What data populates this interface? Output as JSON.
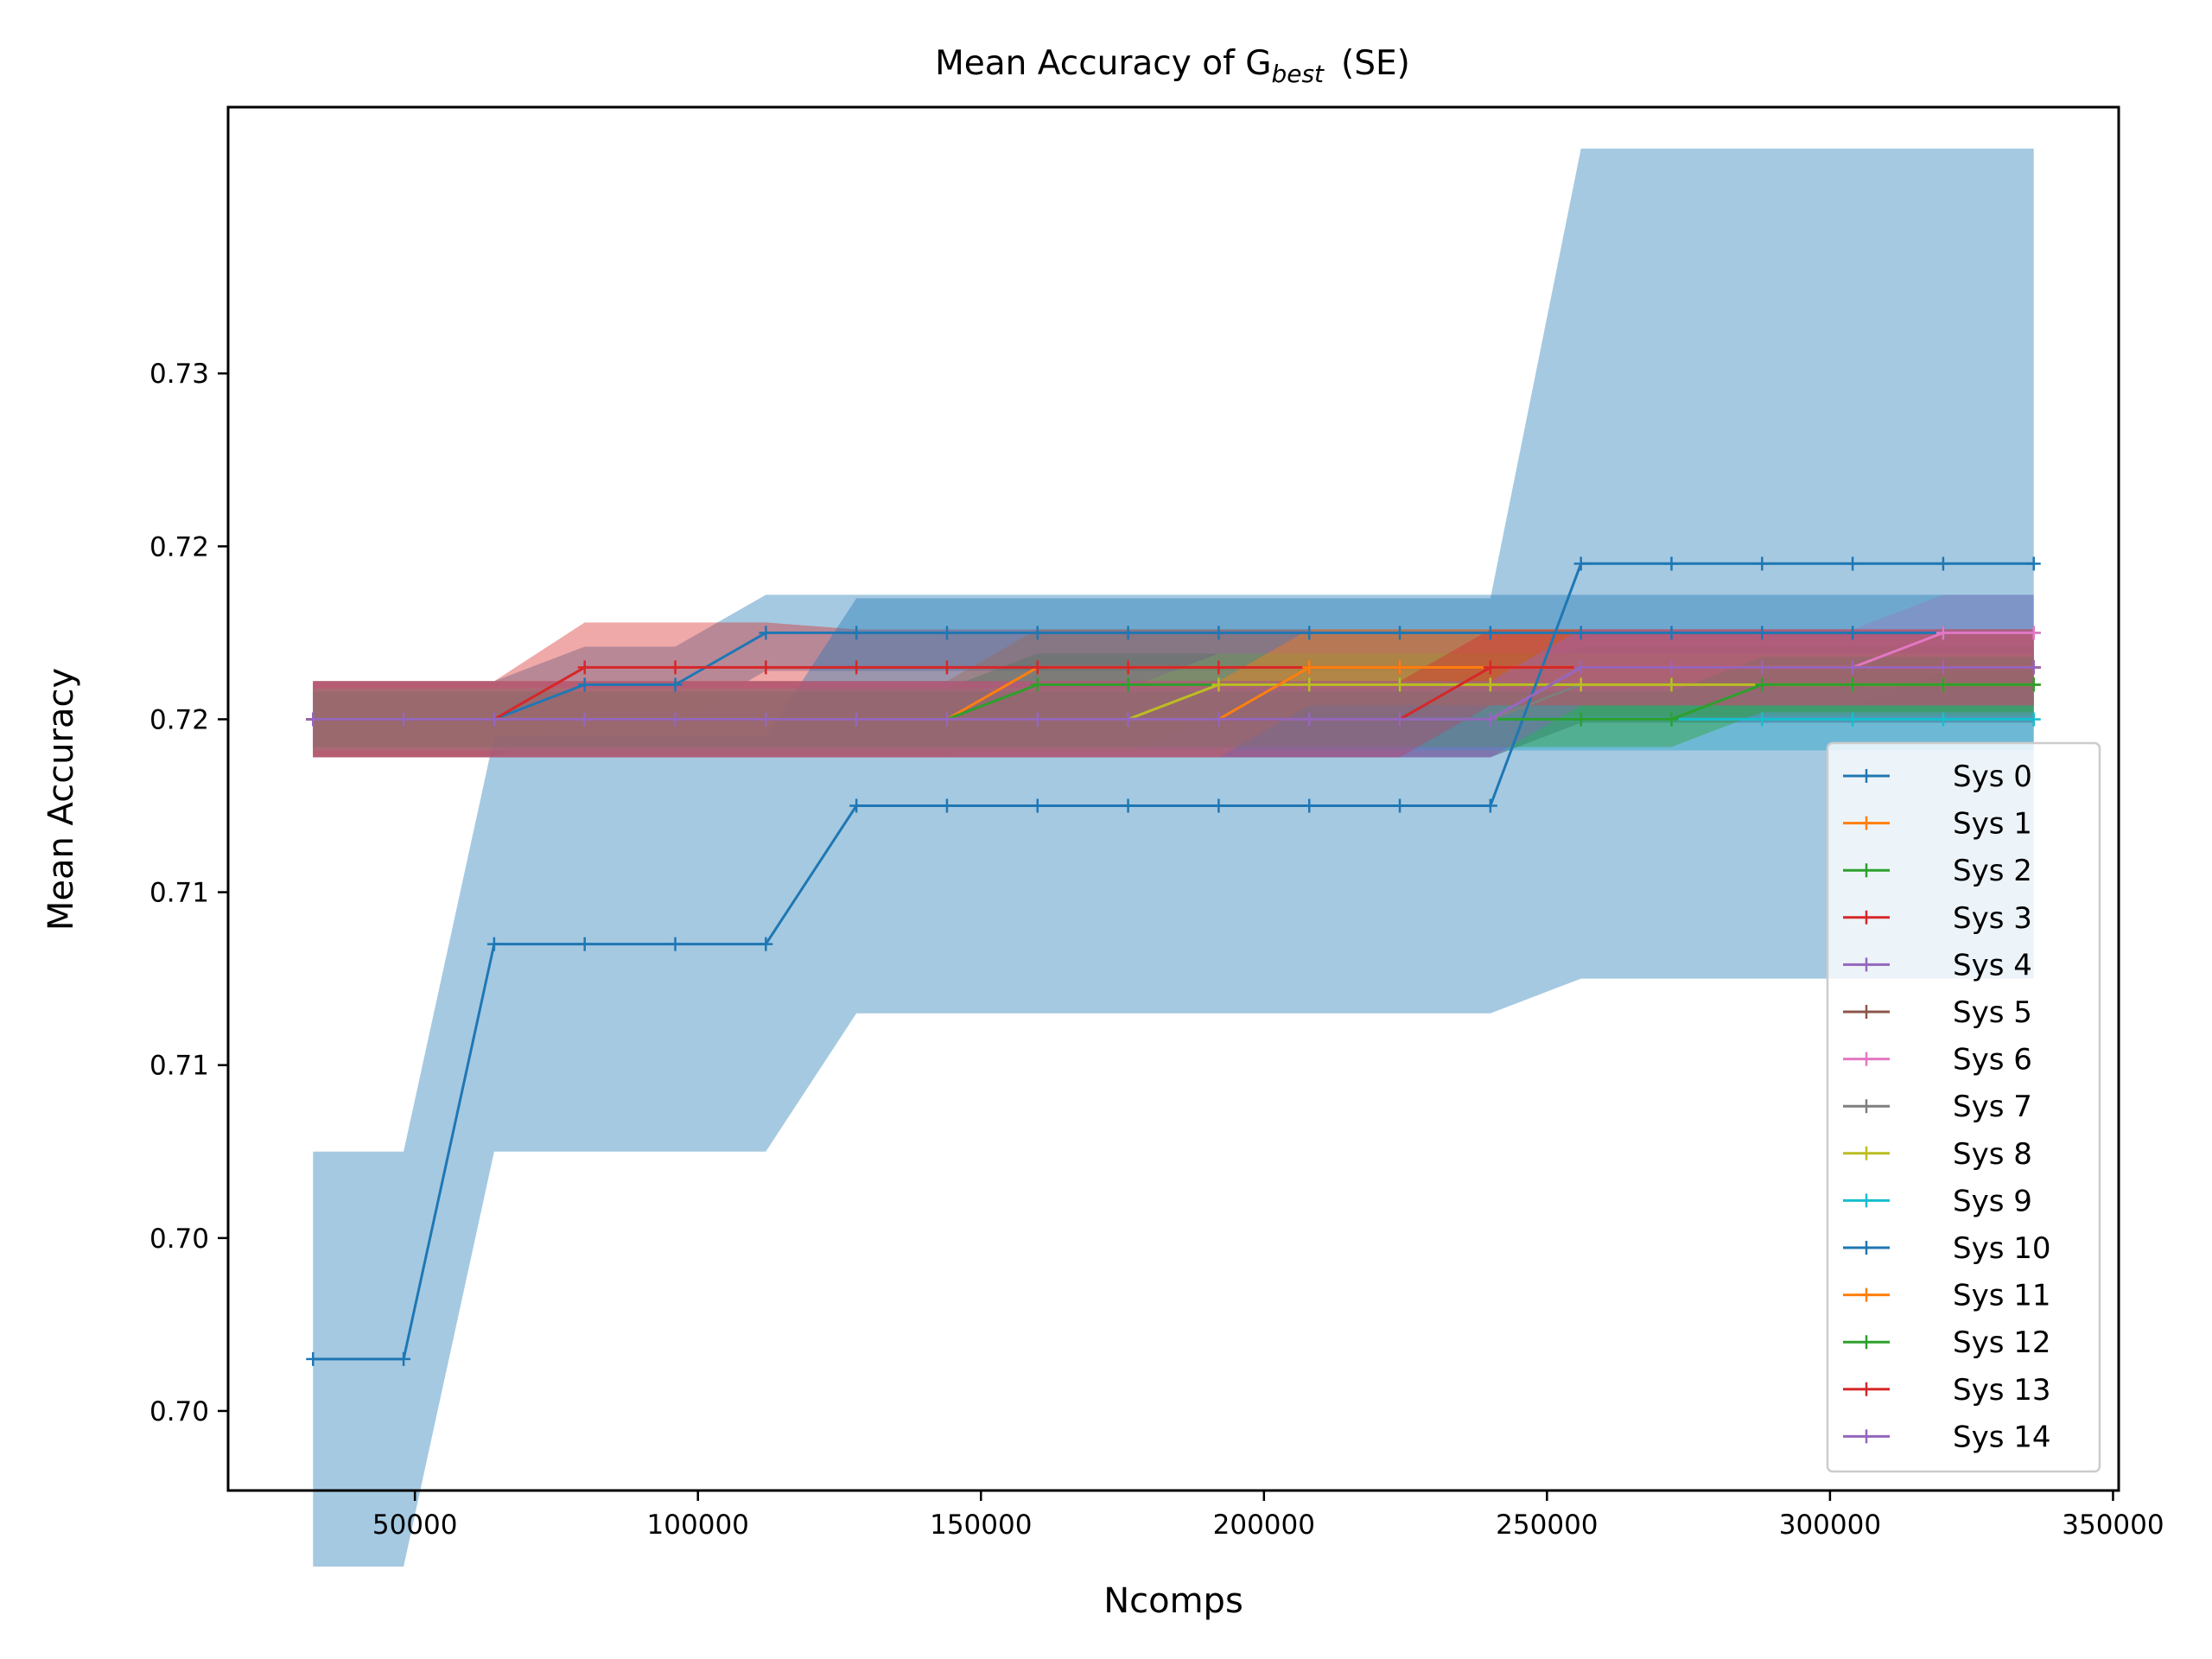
{
  "chart_data": {
    "type": "line",
    "title": "Mean Accuracy of G",
    "title_subscript": "best",
    "title_suffix": "(SE)",
    "xlabel": "Ncomps",
    "ylabel": "Mean Accuracy",
    "xlim": [
      17000,
      351000
    ],
    "ylim": [
      0.6952,
      0.7352
    ],
    "x_ticks": [
      {
        "value": 50000,
        "label": "50000"
      },
      {
        "value": 100000,
        "label": "100000"
      },
      {
        "value": 150000,
        "label": "150000"
      },
      {
        "value": 200000,
        "label": "200000"
      },
      {
        "value": 250000,
        "label": "250000"
      },
      {
        "value": 300000,
        "label": "300000"
      },
      {
        "value": 350000,
        "label": "350000"
      }
    ],
    "y_ticks": [
      {
        "value": 0.6975,
        "label": "0.70"
      },
      {
        "value": 0.7025,
        "label": "0.70"
      },
      {
        "value": 0.7075,
        "label": "0.71"
      },
      {
        "value": 0.7125,
        "label": "0.71"
      },
      {
        "value": 0.7175,
        "label": "0.72"
      },
      {
        "value": 0.7225,
        "label": "0.72"
      },
      {
        "value": 0.7275,
        "label": "0.73"
      }
    ],
    "legend_position": "lower right",
    "grid": false,
    "x": [
      32000,
      48000,
      64000,
      80000,
      96000,
      112000,
      128000,
      144000,
      160000,
      176000,
      192000,
      208000,
      224000,
      240000,
      256000,
      272000,
      288000,
      304000,
      320000,
      336000
    ],
    "series": [
      {
        "name": "Sys 0",
        "color": "#1f77b4",
        "values": [
          0.7175,
          0.7175,
          0.7175,
          0.7185,
          0.7185,
          0.72,
          0.72,
          0.72,
          0.72,
          0.72,
          0.72,
          0.72,
          0.72,
          0.72,
          0.72,
          0.72,
          0.72,
          0.72,
          0.72,
          0.72
        ],
        "band": [
          0.0011,
          0.0011,
          0.0011,
          0.0011,
          0.0011,
          0.0011,
          0.0011,
          0.0011,
          0.0011,
          0.0011,
          0.0011,
          0.0011,
          0.0011,
          0.0011,
          0.0011,
          0.0011,
          0.0011,
          0.0011,
          0.0011,
          0.0011
        ]
      },
      {
        "name": "Sys 1",
        "color": "#ff7f0e",
        "values": [
          0.7175,
          0.7175,
          0.7175,
          0.7175,
          0.7175,
          0.7175,
          0.7175,
          0.7175,
          0.719,
          0.719,
          0.719,
          0.719,
          0.719,
          0.719,
          0.719,
          0.719,
          0.719,
          0.719,
          0.719,
          0.719
        ],
        "band": [
          0.0011,
          0.0011,
          0.0011,
          0.0011,
          0.0011,
          0.0011,
          0.0011,
          0.0011,
          0.0011,
          0.0011,
          0.0011,
          0.0011,
          0.0011,
          0.0011,
          0.0011,
          0.0011,
          0.0011,
          0.0011,
          0.0011,
          0.0011
        ]
      },
      {
        "name": "Sys 2",
        "color": "#2ca02c",
        "values": [
          0.7175,
          0.7175,
          0.7175,
          0.7175,
          0.7175,
          0.7175,
          0.7175,
          0.7175,
          0.7185,
          0.7185,
          0.7185,
          0.7185,
          0.7185,
          0.7185,
          0.7185,
          0.7185,
          0.7185,
          0.7185,
          0.7185,
          0.7185
        ],
        "band": [
          0.0009,
          0.0009,
          0.0009,
          0.0009,
          0.0009,
          0.0009,
          0.0009,
          0.0009,
          0.0009,
          0.0009,
          0.0009,
          0.0009,
          0.0009,
          0.0009,
          0.0009,
          0.0009,
          0.0009,
          0.0009,
          0.0009,
          0.0009
        ]
      },
      {
        "name": "Sys 3",
        "color": "#d62728",
        "values": [
          0.7175,
          0.7175,
          0.7175,
          0.719,
          0.719,
          0.719,
          0.719,
          0.719,
          0.719,
          0.719,
          0.719,
          0.719,
          0.719,
          0.719,
          0.719,
          0.719,
          0.719,
          0.719,
          0.719,
          0.719
        ],
        "band": [
          0.0011,
          0.0011,
          0.0011,
          0.0013,
          0.0013,
          0.0013,
          0.0011,
          0.0011,
          0.0011,
          0.0011,
          0.0011,
          0.0011,
          0.0011,
          0.0011,
          0.0011,
          0.0011,
          0.0011,
          0.0011,
          0.0011,
          0.0011
        ]
      },
      {
        "name": "Sys 4",
        "color": "#9467bd",
        "values": [
          0.7175,
          0.7175,
          0.7175,
          0.7175,
          0.7175,
          0.7175,
          0.7175,
          0.7175,
          0.7175,
          0.7175,
          0.7175,
          0.7175,
          0.7175,
          0.7175,
          0.719,
          0.719,
          0.719,
          0.719,
          0.719,
          0.719
        ],
        "band": [
          0.0011,
          0.0011,
          0.0011,
          0.0011,
          0.0011,
          0.0011,
          0.0011,
          0.0011,
          0.0011,
          0.0011,
          0.0011,
          0.0011,
          0.0011,
          0.0011,
          0.0011,
          0.0011,
          0.0011,
          0.0011,
          0.0011,
          0.0011
        ]
      },
      {
        "name": "Sys 5",
        "color": "#8c564b",
        "values": [
          0.7175,
          0.7175,
          0.7175,
          0.7175,
          0.7175,
          0.7175,
          0.7175,
          0.7175,
          0.7175,
          0.7175,
          0.7175,
          0.7175,
          0.7175,
          0.7175,
          0.7185,
          0.7185,
          0.7185,
          0.7185,
          0.7185,
          0.7185
        ],
        "band": [
          0.0011,
          0.0011,
          0.0011,
          0.0011,
          0.0011,
          0.0011,
          0.0011,
          0.0011,
          0.0011,
          0.0011,
          0.0011,
          0.0011,
          0.0011,
          0.0011,
          0.0011,
          0.0011,
          0.0011,
          0.0011,
          0.0011,
          0.0011
        ]
      },
      {
        "name": "Sys 6",
        "color": "#e377c2",
        "values": [
          0.7175,
          0.7175,
          0.7175,
          0.7175,
          0.7175,
          0.7175,
          0.7175,
          0.7175,
          0.7175,
          0.7175,
          0.7175,
          0.7175,
          0.7175,
          0.7175,
          0.719,
          0.719,
          0.719,
          0.719,
          0.72,
          0.72
        ],
        "band": [
          0.0011,
          0.0011,
          0.0011,
          0.0011,
          0.0011,
          0.0011,
          0.0011,
          0.0011,
          0.0011,
          0.0011,
          0.0011,
          0.0011,
          0.0011,
          0.0011,
          0.0011,
          0.0011,
          0.0011,
          0.0011,
          0.0011,
          0.0011
        ]
      },
      {
        "name": "Sys 7",
        "color": "#7f7f7f",
        "values": [
          0.7175,
          0.7175,
          0.7175,
          0.7175,
          0.7175,
          0.7175,
          0.7175,
          0.7175,
          0.7175,
          0.7175,
          0.7175,
          0.7175,
          0.7175,
          0.7175,
          0.7185,
          0.7185,
          0.7185,
          0.7185,
          0.7185,
          0.7185
        ],
        "band": [
          0.0011,
          0.0011,
          0.0011,
          0.0011,
          0.0011,
          0.0011,
          0.0011,
          0.0011,
          0.0011,
          0.0011,
          0.0011,
          0.0011,
          0.0011,
          0.0011,
          0.0011,
          0.0011,
          0.0011,
          0.0011,
          0.0011,
          0.0011
        ]
      },
      {
        "name": "Sys 8",
        "color": "#bcbd22",
        "values": [
          0.7175,
          0.7175,
          0.7175,
          0.7175,
          0.7175,
          0.7175,
          0.7175,
          0.7175,
          0.7175,
          0.7175,
          0.7185,
          0.7185,
          0.7185,
          0.7185,
          0.7185,
          0.7185,
          0.7185,
          0.7185,
          0.7185,
          0.7185
        ],
        "band": [
          0.0009,
          0.0009,
          0.0009,
          0.0009,
          0.0009,
          0.0009,
          0.0009,
          0.0009,
          0.0009,
          0.0009,
          0.0009,
          0.0009,
          0.0009,
          0.0009,
          0.0009,
          0.0009,
          0.0009,
          0.0009,
          0.0009,
          0.0009
        ]
      },
      {
        "name": "Sys 9",
        "color": "#17becf",
        "values": [
          0.7175,
          0.7175,
          0.7175,
          0.7175,
          0.7175,
          0.7175,
          0.7175,
          0.7175,
          0.7175,
          0.7175,
          0.7175,
          0.7175,
          0.7175,
          0.7175,
          0.7175,
          0.7175,
          0.7175,
          0.7175,
          0.7175,
          0.7175
        ],
        "band": [
          0.0009,
          0.0009,
          0.0009,
          0.0009,
          0.0009,
          0.0009,
          0.0009,
          0.0009,
          0.0009,
          0.0009,
          0.0009,
          0.0009,
          0.0009,
          0.0009,
          0.0009,
          0.0009,
          0.0009,
          0.0009,
          0.0009,
          0.0009
        ]
      },
      {
        "name": "Sys 10",
        "color": "#1f77b4",
        "values": [
          0.699,
          0.699,
          0.711,
          0.711,
          0.711,
          0.711,
          0.715,
          0.715,
          0.715,
          0.715,
          0.715,
          0.715,
          0.715,
          0.715,
          0.722,
          0.722,
          0.722,
          0.722,
          0.722,
          0.722
        ],
        "band": [
          0.006,
          0.006,
          0.006,
          0.006,
          0.006,
          0.006,
          0.006,
          0.006,
          0.006,
          0.006,
          0.006,
          0.006,
          0.006,
          0.006,
          0.012,
          0.012,
          0.012,
          0.012,
          0.012,
          0.012
        ]
      },
      {
        "name": "Sys 11",
        "color": "#ff7f0e",
        "values": [
          0.7175,
          0.7175,
          0.7175,
          0.7175,
          0.7175,
          0.7175,
          0.7175,
          0.7175,
          0.7175,
          0.7175,
          0.7175,
          0.719,
          0.719,
          0.719,
          0.719,
          0.719,
          0.719,
          0.719,
          0.719,
          0.719
        ],
        "band": [
          0.0011,
          0.0011,
          0.0011,
          0.0011,
          0.0011,
          0.0011,
          0.0011,
          0.0011,
          0.0011,
          0.0011,
          0.0011,
          0.0011,
          0.0011,
          0.0011,
          0.0011,
          0.0011,
          0.0011,
          0.0011,
          0.0011,
          0.0011
        ]
      },
      {
        "name": "Sys 12",
        "color": "#2ca02c",
        "values": [
          0.7175,
          0.7175,
          0.7175,
          0.7175,
          0.7175,
          0.7175,
          0.7175,
          0.7175,
          0.7175,
          0.7175,
          0.7175,
          0.7175,
          0.7175,
          0.7175,
          0.7175,
          0.7175,
          0.7185,
          0.7185,
          0.7185,
          0.7185
        ],
        "band": [
          0.0008,
          0.0008,
          0.0008,
          0.0008,
          0.0008,
          0.0008,
          0.0008,
          0.0008,
          0.0008,
          0.0008,
          0.0008,
          0.0008,
          0.0008,
          0.0008,
          0.0008,
          0.0008,
          0.0008,
          0.0008,
          0.0008,
          0.0008
        ]
      },
      {
        "name": "Sys 13",
        "color": "#d62728",
        "values": [
          0.7175,
          0.7175,
          0.7175,
          0.7175,
          0.7175,
          0.7175,
          0.7175,
          0.7175,
          0.7175,
          0.7175,
          0.7175,
          0.7175,
          0.7175,
          0.719,
          0.719,
          0.719,
          0.719,
          0.719,
          0.719,
          0.719
        ],
        "band": [
          0.0011,
          0.0011,
          0.0011,
          0.0011,
          0.0011,
          0.0011,
          0.0011,
          0.0011,
          0.0011,
          0.0011,
          0.0011,
          0.0011,
          0.0011,
          0.0011,
          0.0011,
          0.0011,
          0.0011,
          0.0011,
          0.0011,
          0.0011
        ]
      },
      {
        "name": "Sys 14",
        "color": "#9467bd",
        "values": [
          0.7175,
          0.7175,
          0.7175,
          0.7175,
          0.7175,
          0.7175,
          0.7175,
          0.7175,
          0.7175,
          0.7175,
          0.7175,
          0.7175,
          0.7175,
          0.7175,
          0.719,
          0.719,
          0.719,
          0.719,
          0.719,
          0.719
        ],
        "band": [
          0.0011,
          0.0011,
          0.0011,
          0.0011,
          0.0011,
          0.0011,
          0.0011,
          0.0011,
          0.0011,
          0.0011,
          0.0011,
          0.0011,
          0.0011,
          0.0011,
          0.0011,
          0.0011,
          0.0011,
          0.0011,
          0.0011,
          0.0011
        ]
      }
    ]
  }
}
